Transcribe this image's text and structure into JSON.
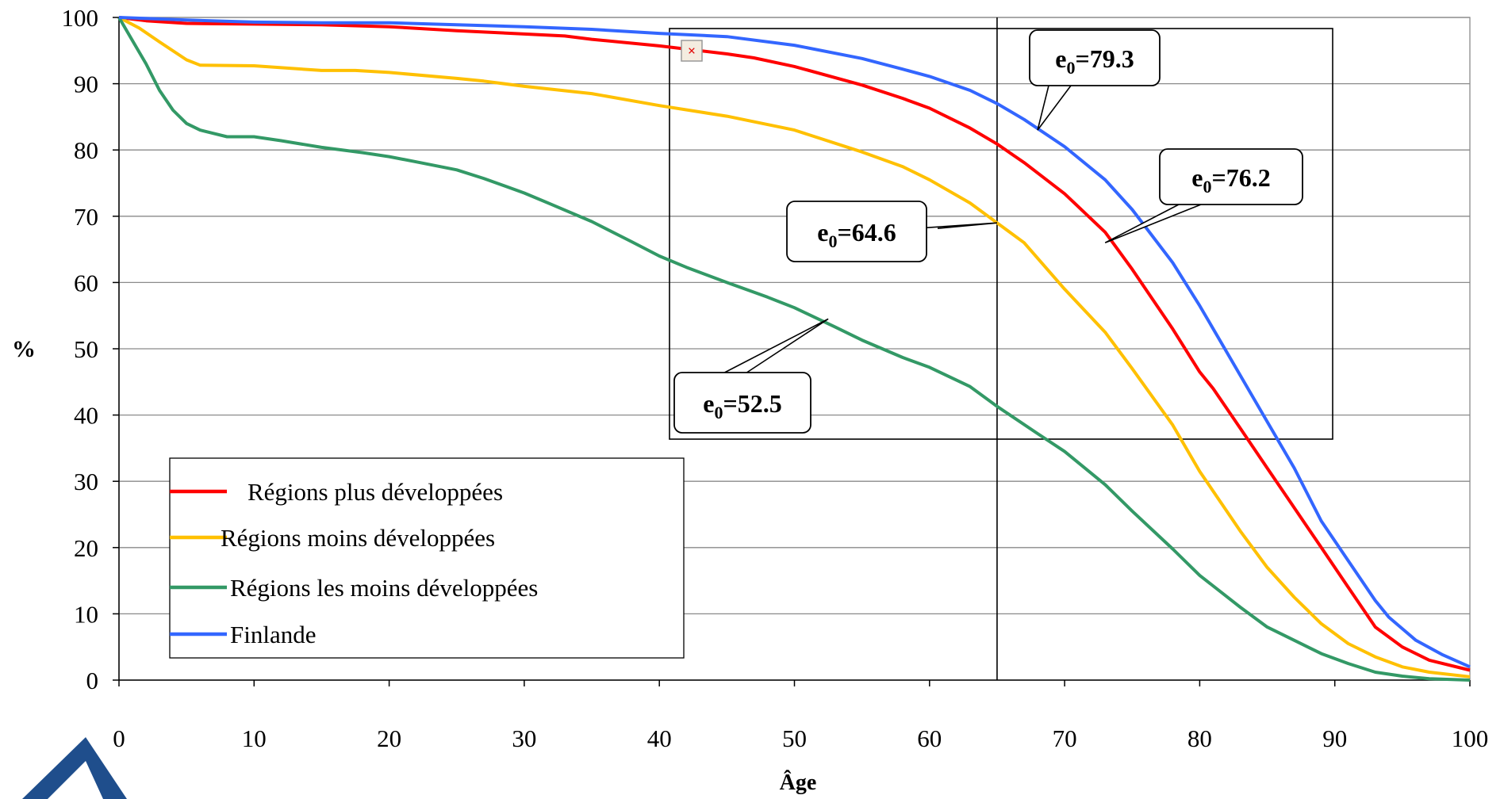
{
  "chart_data": {
    "type": "line",
    "title": "",
    "xlabel": "Âge",
    "ylabel": "%",
    "xlim": [
      0,
      100
    ],
    "ylim": [
      0,
      100
    ],
    "x_ticks": [
      "0",
      "10",
      "20",
      "30",
      "40",
      "50",
      "60",
      "70",
      "80",
      "90",
      "100"
    ],
    "y_ticks": [
      "0",
      "10",
      "20",
      "30",
      "40",
      "50",
      "60",
      "70",
      "80",
      "90",
      "100"
    ],
    "grid": "horizontal",
    "legend_position": "bottom-left",
    "series": [
      {
        "name": "Régions plus développées",
        "color": "#ff0000",
        "points": [
          [
            0,
            100
          ],
          [
            2,
            99.5
          ],
          [
            5,
            99.1
          ],
          [
            10,
            99
          ],
          [
            15,
            98.9
          ],
          [
            20,
            98.6
          ],
          [
            25,
            98
          ],
          [
            30,
            97.5
          ],
          [
            33,
            97.2
          ],
          [
            35,
            96.7
          ],
          [
            40,
            95.7
          ],
          [
            45,
            94.5
          ],
          [
            47,
            93.9
          ],
          [
            50,
            92.6
          ],
          [
            55,
            89.8
          ],
          [
            58,
            87.8
          ],
          [
            60,
            86.3
          ],
          [
            63,
            83.3
          ],
          [
            65,
            80.9
          ],
          [
            67,
            78.1
          ],
          [
            70,
            73.4
          ],
          [
            73,
            67.6
          ],
          [
            75,
            62
          ],
          [
            78,
            53
          ],
          [
            80,
            46.5
          ],
          [
            81,
            44
          ],
          [
            83,
            38
          ],
          [
            85,
            32
          ],
          [
            87,
            26
          ],
          [
            89,
            20
          ],
          [
            91,
            14
          ],
          [
            93,
            8
          ],
          [
            95,
            5
          ],
          [
            97,
            3
          ],
          [
            100,
            1.5
          ]
        ]
      },
      {
        "name": "Régions moins développées",
        "color": "#ffc000",
        "points": [
          [
            0,
            100
          ],
          [
            1.5,
            98.4
          ],
          [
            3,
            96.3
          ],
          [
            5,
            93.6
          ],
          [
            6,
            92.8
          ],
          [
            10,
            92.7
          ],
          [
            15,
            92
          ],
          [
            17.5,
            92
          ],
          [
            20,
            91.7
          ],
          [
            25,
            90.8
          ],
          [
            27,
            90.4
          ],
          [
            30,
            89.6
          ],
          [
            35,
            88.5
          ],
          [
            40,
            86.7
          ],
          [
            45,
            85.1
          ],
          [
            50,
            83
          ],
          [
            55,
            79.7
          ],
          [
            58,
            77.5
          ],
          [
            60,
            75.5
          ],
          [
            63,
            72
          ],
          [
            65,
            69
          ],
          [
            67,
            66
          ],
          [
            70,
            59
          ],
          [
            73,
            52.5
          ],
          [
            75,
            47
          ],
          [
            78,
            38.5
          ],
          [
            80,
            31.5
          ],
          [
            83,
            22.5
          ],
          [
            85,
            17
          ],
          [
            87,
            12.5
          ],
          [
            89,
            8.5
          ],
          [
            91,
            5.5
          ],
          [
            93,
            3.5
          ],
          [
            95,
            2
          ],
          [
            97,
            1.2
          ],
          [
            100,
            0.5
          ]
        ]
      },
      {
        "name": "Régions les moins développées",
        "color": "#339966",
        "points": [
          [
            0,
            100
          ],
          [
            1,
            96.5
          ],
          [
            2,
            93
          ],
          [
            3,
            89
          ],
          [
            4,
            86
          ],
          [
            5,
            84
          ],
          [
            6,
            83
          ],
          [
            7,
            82.5
          ],
          [
            8,
            82
          ],
          [
            10,
            82
          ],
          [
            12,
            81.4
          ],
          [
            15,
            80.4
          ],
          [
            18,
            79.6
          ],
          [
            20,
            79
          ],
          [
            22,
            78.2
          ],
          [
            25,
            77
          ],
          [
            27,
            75.7
          ],
          [
            30,
            73.5
          ],
          [
            32,
            71.8
          ],
          [
            35,
            69.2
          ],
          [
            38,
            66.1
          ],
          [
            40,
            64
          ],
          [
            42,
            62.3
          ],
          [
            45,
            60
          ],
          [
            48,
            57.8
          ],
          [
            50,
            56.2
          ],
          [
            53,
            53.3
          ],
          [
            55,
            51.3
          ],
          [
            58,
            48.7
          ],
          [
            60,
            47.2
          ],
          [
            63,
            44.3
          ],
          [
            65,
            41.3
          ],
          [
            68,
            37.2
          ],
          [
            70,
            34.5
          ],
          [
            73,
            29.5
          ],
          [
            75,
            25.5
          ],
          [
            78,
            19.8
          ],
          [
            80,
            15.8
          ],
          [
            83,
            11
          ],
          [
            85,
            8
          ],
          [
            87,
            6
          ],
          [
            89,
            4
          ],
          [
            91,
            2.5
          ],
          [
            93,
            1.2
          ],
          [
            95,
            0.6
          ],
          [
            97,
            0.2
          ],
          [
            100,
            0
          ]
        ]
      },
      {
        "name": "Finlande",
        "color": "#3366ff",
        "points": [
          [
            0,
            100
          ],
          [
            5,
            99.6
          ],
          [
            10,
            99.3
          ],
          [
            15,
            99.2
          ],
          [
            20,
            99.2
          ],
          [
            25,
            98.9
          ],
          [
            30,
            98.6
          ],
          [
            35,
            98.2
          ],
          [
            40,
            97.6
          ],
          [
            45,
            97.1
          ],
          [
            50,
            95.8
          ],
          [
            55,
            93.8
          ],
          [
            58,
            92.2
          ],
          [
            60,
            91.1
          ],
          [
            63,
            89
          ],
          [
            65,
            87
          ],
          [
            67,
            84.6
          ],
          [
            70,
            80.5
          ],
          [
            73,
            75.5
          ],
          [
            75,
            71
          ],
          [
            78,
            63
          ],
          [
            80,
            56.5
          ],
          [
            82,
            49.5
          ],
          [
            85,
            39
          ],
          [
            87,
            32
          ],
          [
            89,
            24
          ],
          [
            91,
            18
          ],
          [
            93,
            12
          ],
          [
            94,
            9.5
          ],
          [
            96,
            6
          ],
          [
            98,
            3.8
          ],
          [
            100,
            2
          ]
        ]
      }
    ],
    "annotations": [
      {
        "name": "Finlande",
        "text": "e0=79.3",
        "value": "79.3",
        "anchor": [
          68,
          83
        ]
      },
      {
        "name": "Régions plus développées",
        "text": "e0=76.2",
        "value": "76.2",
        "anchor": [
          73,
          66
        ]
      },
      {
        "name": "Régions moins développées",
        "text": "e0=64.6",
        "value": "64.6",
        "anchor": [
          65,
          69
        ]
      },
      {
        "name": "Régions les moins développées",
        "text": "e0=52.5",
        "value": "52.5",
        "anchor": [
          52.5,
          54.5
        ]
      }
    ],
    "reference_line_x": 65
  },
  "callout_prefix": "e",
  "callout_subscript": "0",
  "callout_equals": "="
}
